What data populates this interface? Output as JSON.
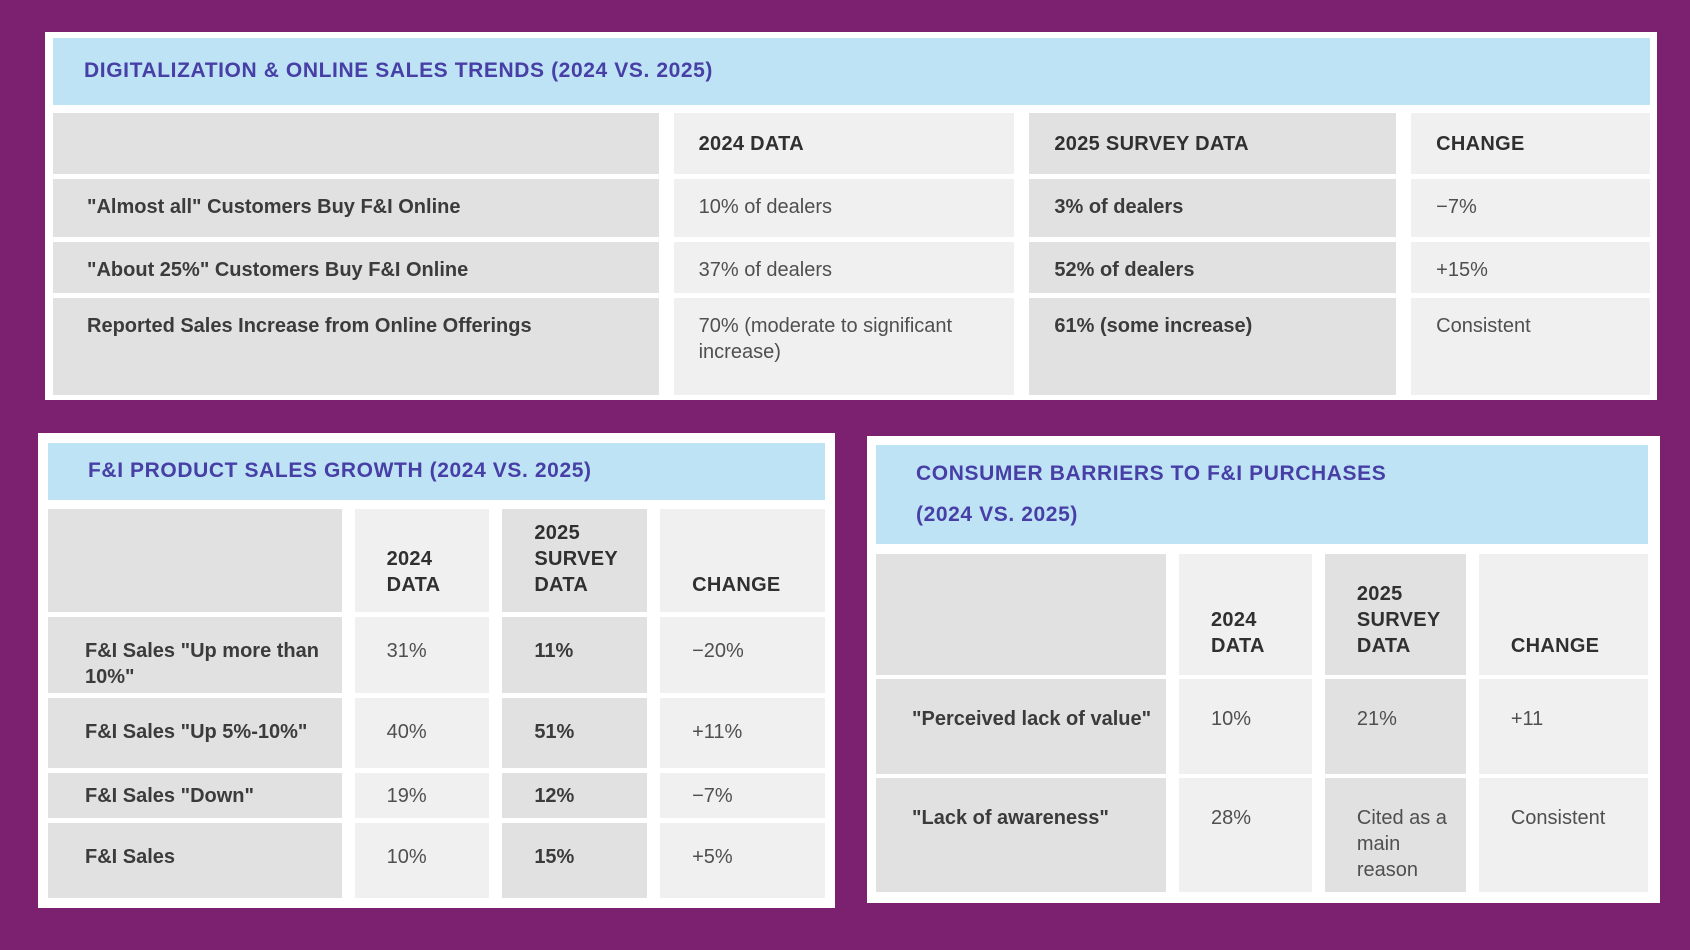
{
  "colors": {
    "page_background": "#7b2170",
    "card_background": "#ffffff",
    "header_bar": "#bee3f5",
    "title_text": "#473fa6",
    "cell_dark": "#e2e1e1",
    "cell_light": "#f1f0f0",
    "label_text": "#3b3b3b",
    "value_text": "#4f4f4f"
  },
  "chart_data": [
    {
      "type": "table",
      "id": "digitalization-online-sales-trends",
      "title": "DIGITALIZATION & ONLINE SALES TRENDS (2024 VS. 2025)",
      "title_lines": [
        "DIGITALIZATION & ONLINE SALES TRENDS (2024 VS. 2025)"
      ],
      "columns": [
        "",
        "2024 DATA",
        "2025 SURVEY DATA",
        "CHANGE"
      ],
      "rows": [
        [
          "\"Almost all\" Customers Buy F&I Online",
          "10% of dealers",
          "3% of dealers",
          "−7%"
        ],
        [
          "\"About 25%\" Customers Buy F&I Online",
          "37% of dealers",
          "52% of dealers",
          "+15%"
        ],
        [
          "Reported Sales Increase from Online Offerings",
          "70% (moderate to significant increase)",
          "61% (some increase)",
          "Consistent"
        ]
      ]
    },
    {
      "type": "table",
      "id": "fi-product-sales-growth",
      "title": "F&I PRODUCT SALES GROWTH (2024 VS. 2025)",
      "title_lines": [
        "F&I PRODUCT SALES GROWTH (2024 VS. 2025)"
      ],
      "columns": [
        "",
        "2024 DATA",
        "2025 SURVEY DATA",
        "CHANGE"
      ],
      "rows": [
        [
          "F&I Sales \"Up more than 10%\"",
          "31%",
          "11%",
          "−20%"
        ],
        [
          "F&I Sales \"Up 5%-10%\"",
          "40%",
          "51%",
          "+11%"
        ],
        [
          "F&I Sales \"Down\"",
          "19%",
          "12%",
          "−7%"
        ],
        [
          "F&I Sales",
          "10%",
          "15%",
          "+5%"
        ]
      ]
    },
    {
      "type": "table",
      "id": "consumer-barriers-to-fi-purchases",
      "title": "CONSUMER BARRIERS TO F&I PURCHASES (2024 VS. 2025)",
      "title_lines": [
        "CONSUMER BARRIERS TO F&I PURCHASES",
        "(2024 VS. 2025)"
      ],
      "columns": [
        "",
        "2024 DATA",
        "2025 SURVEY DATA",
        "CHANGE"
      ],
      "rows": [
        [
          "\"Perceived lack of value\"",
          "10%",
          "21%",
          "+11"
        ],
        [
          "\"Lack of awareness\"",
          "28%",
          "Cited as a main reason",
          "Consistent"
        ]
      ]
    }
  ]
}
